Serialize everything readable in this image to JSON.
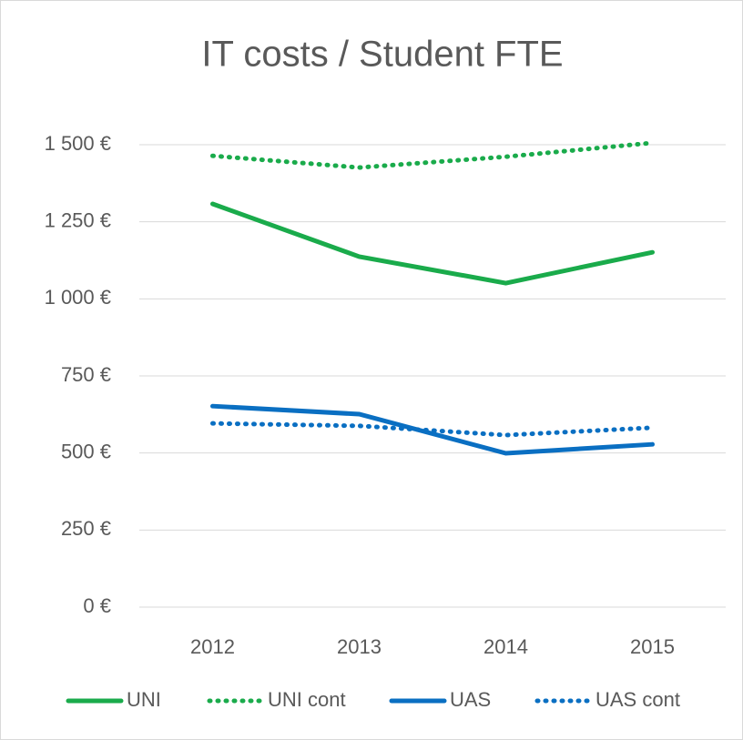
{
  "chart_data": {
    "type": "line",
    "title": "IT costs / Student FTE",
    "categories": [
      "2012",
      "2013",
      "2014",
      "2015"
    ],
    "series": [
      {
        "name": "UNI",
        "color": "#1aab4b",
        "dotted": false,
        "values": [
          1308,
          1137,
          1051,
          1151
        ]
      },
      {
        "name": "UNI cont",
        "color": "#1aab4b",
        "dotted": true,
        "values": [
          1464,
          1426,
          1461,
          1506
        ]
      },
      {
        "name": "UAS",
        "color": "#0a6fc2",
        "dotted": false,
        "values": [
          652,
          626,
          499,
          528
        ]
      },
      {
        "name": "UAS cont",
        "color": "#0a6fc2",
        "dotted": true,
        "values": [
          596,
          588,
          558,
          582
        ]
      }
    ],
    "ylim": [
      0,
      1500
    ],
    "yticks": [
      {
        "value": 0,
        "label": "0 €"
      },
      {
        "value": 250,
        "label": "250 €"
      },
      {
        "value": 500,
        "label": "500 €"
      },
      {
        "value": 750,
        "label": "750 €"
      },
      {
        "value": 1000,
        "label": "1 000 €"
      },
      {
        "value": 1250,
        "label": "1 250 €"
      },
      {
        "value": 1500,
        "label": "1 500 €"
      }
    ],
    "grid": true,
    "legend": "bottom"
  }
}
